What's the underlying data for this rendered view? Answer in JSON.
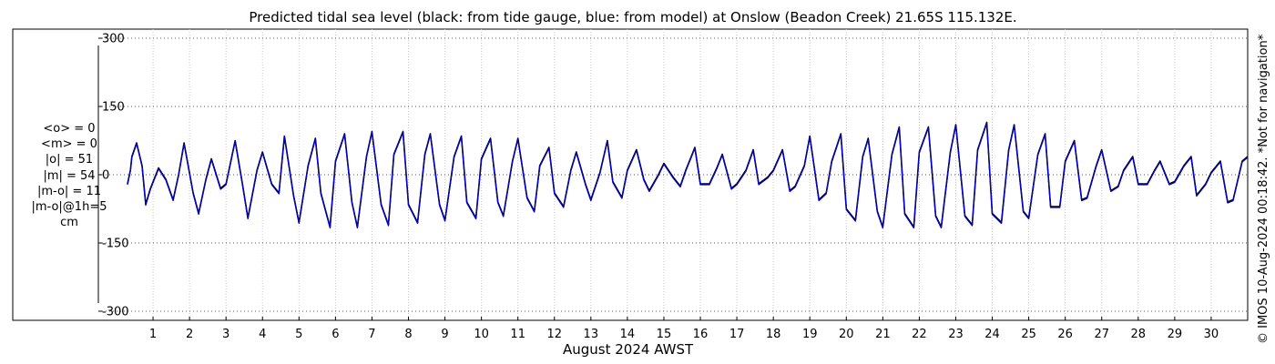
{
  "chart_data": {
    "type": "line",
    "title": "Predicted tidal sea level (black: from tide gauge, blue: from model) at Onslow (Beadon Creek) 21.65S 115.132E.",
    "xlabel": "August 2024 AWST",
    "ylabel": "",
    "xlim": [
      0.3,
      31.0
    ],
    "ylim": [
      -320,
      320
    ],
    "yticks": [
      300,
      150,
      0,
      -150,
      -300
    ],
    "ytick_labels": [
      "300",
      "150",
      "0",
      "-150",
      "-300"
    ],
    "xticks": [
      1,
      2,
      3,
      4,
      5,
      6,
      7,
      8,
      9,
      10,
      11,
      12,
      13,
      14,
      15,
      16,
      17,
      18,
      19,
      20,
      21,
      22,
      23,
      24,
      25,
      26,
      27,
      28,
      29,
      30
    ],
    "xtick_labels": [
      "1",
      "2",
      "3",
      "4",
      "5",
      "6",
      "7",
      "8",
      "9",
      "10",
      "11",
      "12",
      "13",
      "14",
      "15",
      "16",
      "17",
      "18",
      "19",
      "20",
      "21",
      "22",
      "23",
      "24",
      "25",
      "26",
      "27",
      "28",
      "29",
      "30"
    ],
    "grid": true,
    "series": [
      {
        "name": "black: from tide gauge",
        "color": "#000000",
        "x": [
          0.3,
          0.38,
          0.42,
          0.55,
          0.7,
          0.8,
          0.93,
          1.15,
          1.35,
          1.55,
          1.7,
          1.85,
          2.1,
          2.25,
          2.45,
          2.6,
          2.85,
          3.0,
          3.25,
          3.45,
          3.6,
          3.85,
          4.0,
          4.25,
          4.45,
          4.6,
          4.85,
          5.0,
          5.25,
          5.45,
          5.6,
          5.85,
          6.0,
          6.25,
          6.45,
          6.6,
          6.85,
          7.0,
          7.25,
          7.45,
          7.6,
          7.85,
          8.0,
          8.25,
          8.45,
          8.6,
          8.85,
          9.0,
          9.25,
          9.45,
          9.6,
          9.85,
          10.0,
          10.25,
          10.45,
          10.6,
          10.85,
          11.0,
          11.25,
          11.45,
          11.6,
          11.85,
          12.0,
          12.25,
          12.45,
          12.6,
          12.85,
          13.0,
          13.25,
          13.45,
          13.6,
          13.85,
          14.0,
          14.25,
          14.45,
          14.6,
          14.85,
          15.0,
          15.25,
          15.45,
          15.6,
          15.85,
          16.0,
          16.25,
          16.45,
          16.6,
          16.85,
          17.0,
          17.25,
          17.45,
          17.6,
          17.85,
          18.0,
          18.25,
          18.45,
          18.6,
          18.85,
          19.0,
          19.25,
          19.45,
          19.6,
          19.85,
          20.0,
          20.25,
          20.45,
          20.6,
          20.85,
          21.0,
          21.25,
          21.45,
          21.6,
          21.85,
          22.0,
          22.25,
          22.45,
          22.6,
          22.85,
          23.0,
          23.25,
          23.45,
          23.6,
          23.85,
          24.0,
          24.25,
          24.45,
          24.6,
          24.85,
          25.0,
          25.25,
          25.45,
          25.6,
          25.85,
          26.0,
          26.25,
          26.45,
          26.6,
          26.85,
          27.0,
          27.25,
          27.45,
          27.6,
          27.85,
          28.0,
          28.25,
          28.45,
          28.6,
          28.85,
          29.0,
          29.25,
          29.45,
          29.6,
          29.85,
          30.0,
          30.25,
          30.45,
          30.6,
          30.85,
          31.0
        ],
        "y": [
          -20,
          10,
          40,
          70,
          20,
          -65,
          -30,
          15,
          -10,
          -55,
          0,
          70,
          -40,
          -85,
          -10,
          35,
          -30,
          -20,
          75,
          -20,
          -95,
          10,
          50,
          -20,
          -40,
          85,
          -45,
          -105,
          20,
          80,
          -40,
          -115,
          30,
          90,
          -60,
          -115,
          40,
          95,
          -65,
          -110,
          45,
          95,
          -65,
          -105,
          45,
          90,
          -65,
          -100,
          40,
          85,
          -60,
          -95,
          35,
          80,
          -60,
          -90,
          30,
          80,
          -50,
          -80,
          20,
          60,
          -40,
          -70,
          10,
          50,
          -20,
          -55,
          5,
          75,
          -15,
          -50,
          10,
          55,
          -10,
          -35,
          0,
          25,
          -5,
          -25,
          10,
          60,
          -20,
          -20,
          15,
          45,
          -30,
          -20,
          10,
          55,
          -20,
          -5,
          10,
          55,
          -35,
          -25,
          20,
          85,
          -55,
          -40,
          30,
          90,
          -75,
          -100,
          40,
          80,
          -80,
          -115,
          45,
          105,
          -85,
          -115,
          50,
          105,
          -90,
          -115,
          50,
          110,
          -90,
          -110,
          55,
          115,
          -85,
          -105,
          55,
          110,
          -80,
          -95,
          45,
          90,
          -70,
          -70,
          30,
          75,
          -55,
          -50,
          20,
          55,
          -35,
          -25,
          10,
          40,
          -20,
          -20,
          10,
          30,
          -20,
          -15,
          20,
          40,
          -45,
          -20,
          5,
          30,
          -60,
          -55,
          30,
          40
        ]
      },
      {
        "name": "blue: from model",
        "color": "#0000cc",
        "x": [
          0.3,
          0.38,
          0.42,
          0.55,
          0.7,
          0.8,
          0.93,
          1.15,
          1.35,
          1.55,
          1.7,
          1.85,
          2.1,
          2.25,
          2.45,
          2.6,
          2.85,
          3.0,
          3.25,
          3.45,
          3.6,
          3.85,
          4.0,
          4.25,
          4.45,
          4.6,
          4.85,
          5.0,
          5.25,
          5.45,
          5.6,
          5.85,
          6.0,
          6.25,
          6.45,
          6.6,
          6.85,
          7.0,
          7.25,
          7.45,
          7.6,
          7.85,
          8.0,
          8.25,
          8.45,
          8.6,
          8.85,
          9.0,
          9.25,
          9.45,
          9.6,
          9.85,
          10.0,
          10.25,
          10.45,
          10.6,
          10.85,
          11.0,
          11.25,
          11.45,
          11.6,
          11.85,
          12.0,
          12.25,
          12.45,
          12.6,
          12.85,
          13.0,
          13.25,
          13.45,
          13.6,
          13.85,
          14.0,
          14.25,
          14.45,
          14.6,
          14.85,
          15.0,
          15.25,
          15.45,
          15.6,
          15.85,
          16.0,
          16.25,
          16.45,
          16.6,
          16.85,
          17.0,
          17.25,
          17.45,
          17.6,
          17.85,
          18.0,
          18.25,
          18.45,
          18.6,
          18.85,
          19.0,
          19.25,
          19.45,
          19.6,
          19.85,
          20.0,
          20.25,
          20.45,
          20.6,
          20.85,
          21.0,
          21.25,
          21.45,
          21.6,
          21.85,
          22.0,
          22.25,
          22.45,
          22.6,
          22.85,
          23.0,
          23.25,
          23.45,
          23.6,
          23.85,
          24.0,
          24.25,
          24.45,
          24.6,
          24.85,
          25.0,
          25.25,
          25.45,
          25.6,
          25.85,
          26.0,
          26.25,
          26.45,
          26.6,
          26.85,
          27.0,
          27.25,
          27.45,
          27.6,
          27.85,
          28.0,
          28.25,
          28.45,
          28.6,
          28.85,
          29.0,
          29.25,
          29.45,
          29.6,
          29.85,
          30.0,
          30.25,
          30.45,
          30.6,
          30.85,
          31.0
        ],
        "y": [
          -22,
          8,
          38,
          68,
          18,
          -67,
          -32,
          13,
          -12,
          -57,
          -2,
          68,
          -42,
          -87,
          -12,
          33,
          -32,
          -22,
          73,
          -22,
          -97,
          8,
          48,
          -22,
          -42,
          83,
          -47,
          -107,
          18,
          78,
          -42,
          -117,
          28,
          88,
          -62,
          -117,
          38,
          93,
          -67,
          -112,
          43,
          93,
          -67,
          -107,
          43,
          88,
          -67,
          -102,
          38,
          83,
          -62,
          -97,
          33,
          78,
          -62,
          -92,
          28,
          78,
          -52,
          -82,
          18,
          58,
          -42,
          -72,
          8,
          48,
          -22,
          -57,
          3,
          73,
          -17,
          -52,
          8,
          53,
          -12,
          -37,
          -2,
          23,
          -7,
          -27,
          8,
          58,
          -22,
          -22,
          13,
          43,
          -32,
          -22,
          8,
          53,
          -22,
          -7,
          8,
          53,
          -37,
          -27,
          18,
          83,
          -57,
          -42,
          28,
          88,
          -77,
          -102,
          38,
          78,
          -82,
          -117,
          43,
          103,
          -87,
          -117,
          48,
          103,
          -92,
          -117,
          48,
          108,
          -92,
          -112,
          53,
          113,
          -87,
          -107,
          53,
          108,
          -82,
          -97,
          43,
          88,
          -72,
          -72,
          28,
          73,
          -57,
          -52,
          18,
          53,
          -37,
          -27,
          8,
          38,
          -22,
          -22,
          8,
          28,
          -22,
          -17,
          18,
          38,
          -47,
          -22,
          3,
          28,
          -62,
          -57,
          28,
          38
        ]
      }
    ]
  },
  "stats": [
    "<o> = 0",
    "<m> = 0",
    "|o| = 51",
    "|m| = 54",
    "|m-o| = 11",
    "|m-o|@1h=5",
    "cm"
  ],
  "stamp": "© IMOS 10-Aug-2024 00:18:42. *Not for navigation*"
}
